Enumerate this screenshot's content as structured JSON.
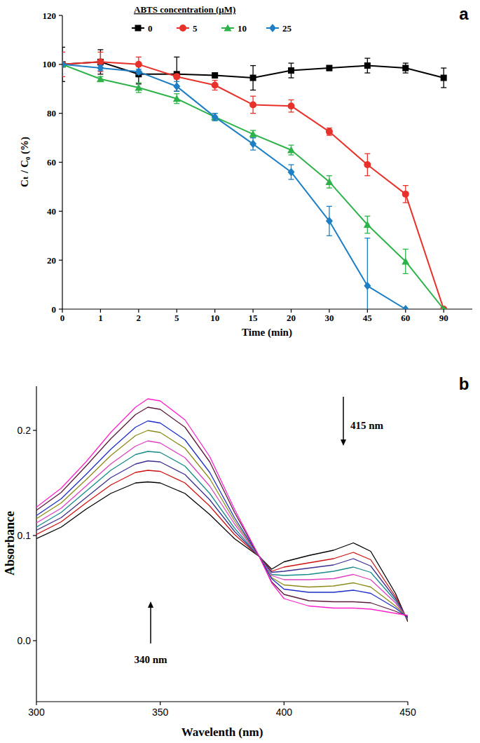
{
  "chart_data": [
    {
      "type": "line",
      "panel_label": "a",
      "categories": [
        "0",
        "1",
        "2",
        "5",
        "10",
        "15",
        "20",
        "30",
        "45",
        "60",
        "90"
      ],
      "x_label": "Time (min)",
      "y_label": "Cₜ / C₀ (%)",
      "legend_title": "ABTS concentration (μM)",
      "legend": "top-left",
      "ylim": [
        0,
        120
      ],
      "yticks": [
        0,
        20,
        40,
        60,
        80,
        100,
        120
      ],
      "grid": false,
      "series": [
        {
          "name": "0",
          "color": "#000000",
          "marker": "square",
          "values": [
            100,
            101,
            96,
            96,
            95.5,
            94.5,
            97.5,
            98.5,
            99.5,
            98.5,
            94.5
          ],
          "errors": [
            7,
            5,
            4,
            7,
            0,
            5,
            3,
            1,
            3,
            2,
            4
          ]
        },
        {
          "name": "5",
          "color": "#e8312a",
          "marker": "circle",
          "values": [
            100,
            101,
            100,
            95,
            91.5,
            83.5,
            83,
            72.5,
            59,
            47,
            0
          ],
          "errors": [
            5,
            4,
            3,
            1,
            2,
            3.5,
            2.5,
            1.5,
            4.5,
            3.5,
            0
          ]
        },
        {
          "name": "10",
          "color": "#2db34a",
          "marker": "triangle",
          "values": [
            100,
            94,
            90.5,
            86,
            78.5,
            71.5,
            65,
            52,
            34.5,
            19.5,
            0
          ],
          "errors": [
            0,
            1,
            2,
            2,
            1.5,
            1.5,
            2,
            2.5,
            3.5,
            5,
            0
          ]
        },
        {
          "name": "25",
          "color": "#1e7fc4",
          "marker": "diamond",
          "values": [
            100,
            98.5,
            97,
            91,
            78.5,
            67.5,
            56,
            36,
            9.5,
            0,
            null
          ],
          "errors": [
            0,
            1,
            1,
            2,
            1.5,
            2.5,
            3,
            6,
            19.5,
            0,
            null
          ]
        }
      ]
    },
    {
      "type": "line",
      "panel_label": "b",
      "x": [
        300,
        310,
        320,
        330,
        340,
        345,
        350,
        360,
        370,
        380,
        390,
        395,
        400,
        410,
        420,
        428,
        435,
        445,
        450
      ],
      "xlim": [
        300,
        450
      ],
      "xticks": [
        300,
        350,
        400,
        450
      ],
      "ylim": [
        -0.058,
        0.242
      ],
      "yticks": [
        {
          "value": 0,
          "label": "0.0"
        },
        {
          "value": 0.1,
          "label": "0.1"
        },
        {
          "value": 0.2,
          "label": "0.2"
        }
      ],
      "x_label": "Wavelenth (nm)",
      "y_label": "Absorbance",
      "annotations": [
        "415 nm",
        "340 nm"
      ],
      "grid": false,
      "series": [
        {
          "color": "#000000",
          "values": [
            0.097,
            0.108,
            0.125,
            0.14,
            0.15,
            0.151,
            0.15,
            0.14,
            0.12,
            0.097,
            0.08,
            0.068,
            0.075,
            0.081,
            0.086,
            0.093,
            0.085,
            0.045,
            0.018
          ]
        },
        {
          "color": "#d01010",
          "values": [
            0.101,
            0.113,
            0.131,
            0.148,
            0.16,
            0.162,
            0.161,
            0.15,
            0.128,
            0.101,
            0.08,
            0.066,
            0.07,
            0.074,
            0.078,
            0.084,
            0.077,
            0.042,
            0.019
          ]
        },
        {
          "color": "#3a2f8f",
          "values": [
            0.105,
            0.117,
            0.136,
            0.155,
            0.168,
            0.171,
            0.17,
            0.158,
            0.134,
            0.104,
            0.08,
            0.065,
            0.066,
            0.069,
            0.072,
            0.078,
            0.071,
            0.04,
            0.02
          ]
        },
        {
          "color": "#1a8a8a",
          "values": [
            0.108,
            0.122,
            0.142,
            0.162,
            0.177,
            0.18,
            0.179,
            0.166,
            0.14,
            0.107,
            0.08,
            0.063,
            0.062,
            0.063,
            0.066,
            0.07,
            0.065,
            0.038,
            0.02
          ]
        },
        {
          "color": "#e040c0",
          "values": [
            0.112,
            0.126,
            0.147,
            0.168,
            0.185,
            0.19,
            0.188,
            0.174,
            0.147,
            0.111,
            0.08,
            0.062,
            0.058,
            0.058,
            0.059,
            0.063,
            0.058,
            0.036,
            0.021
          ]
        },
        {
          "color": "#8c8c1a",
          "values": [
            0.116,
            0.131,
            0.153,
            0.176,
            0.195,
            0.2,
            0.198,
            0.183,
            0.154,
            0.114,
            0.08,
            0.06,
            0.053,
            0.051,
            0.052,
            0.055,
            0.051,
            0.033,
            0.022
          ]
        },
        {
          "color": "#1c2fc8",
          "values": [
            0.119,
            0.135,
            0.158,
            0.182,
            0.203,
            0.209,
            0.207,
            0.191,
            0.16,
            0.117,
            0.08,
            0.059,
            0.049,
            0.046,
            0.046,
            0.048,
            0.045,
            0.031,
            0.022
          ]
        },
        {
          "color": "#5a1a3a",
          "values": [
            0.124,
            0.141,
            0.166,
            0.192,
            0.215,
            0.222,
            0.22,
            0.203,
            0.17,
            0.122,
            0.08,
            0.056,
            0.044,
            0.038,
            0.037,
            0.037,
            0.036,
            0.028,
            0.023
          ]
        },
        {
          "color": "#ff22cc",
          "values": [
            0.127,
            0.145,
            0.17,
            0.198,
            0.222,
            0.23,
            0.228,
            0.21,
            0.175,
            0.125,
            0.08,
            0.055,
            0.04,
            0.033,
            0.031,
            0.031,
            0.03,
            0.026,
            0.024
          ]
        }
      ]
    }
  ]
}
